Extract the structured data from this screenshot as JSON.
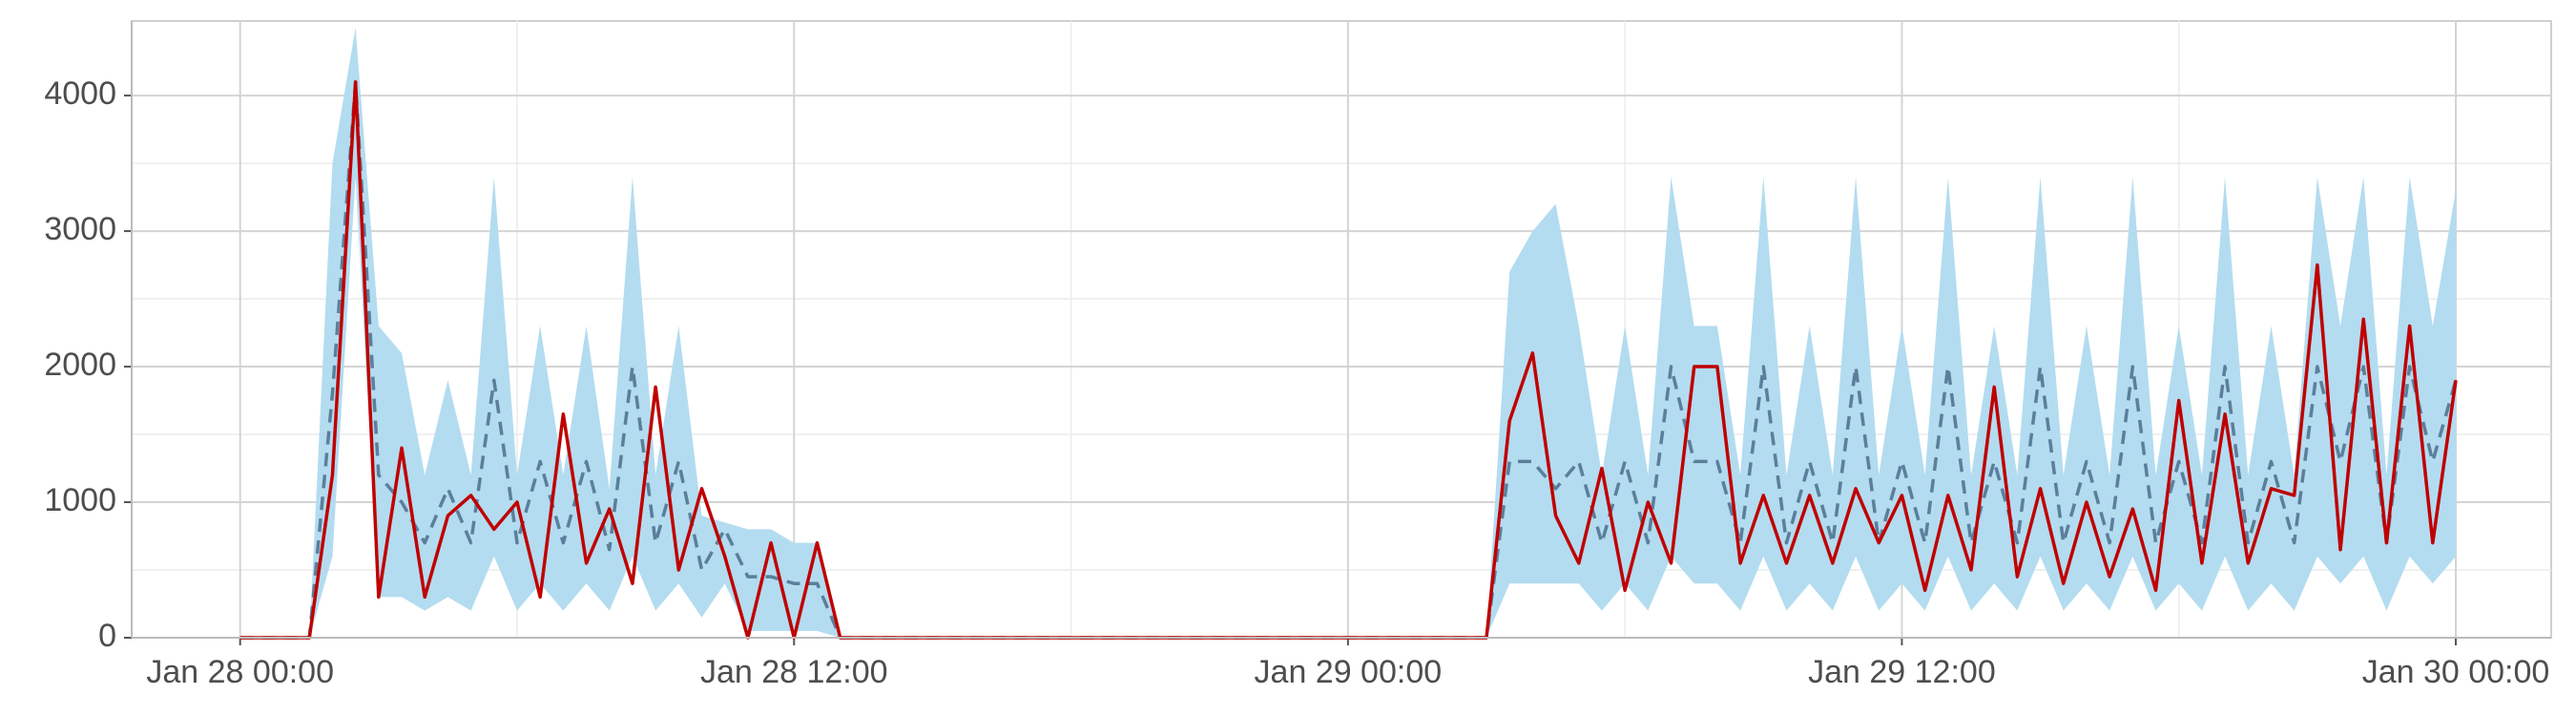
{
  "chart_data": {
    "type": "line",
    "x": [
      "Jan 28 00:00",
      "Jan 28 00:30",
      "Jan 28 01:00",
      "Jan 28 01:30",
      "Jan 28 02:00",
      "Jan 28 02:30",
      "Jan 28 03:00",
      "Jan 28 03:30",
      "Jan 28 04:00",
      "Jan 28 04:30",
      "Jan 28 05:00",
      "Jan 28 05:30",
      "Jan 28 06:00",
      "Jan 28 06:30",
      "Jan 28 07:00",
      "Jan 28 07:30",
      "Jan 28 08:00",
      "Jan 28 08:30",
      "Jan 28 09:00",
      "Jan 28 09:30",
      "Jan 28 10:00",
      "Jan 28 10:30",
      "Jan 28 11:00",
      "Jan 28 11:30",
      "Jan 28 12:00",
      "Jan 28 12:30",
      "Jan 28 13:00",
      "Jan 28 13:30",
      "Jan 28 14:00",
      "Jan 28 14:30",
      "Jan 28 15:00",
      "Jan 28 15:30",
      "Jan 28 16:00",
      "Jan 28 16:30",
      "Jan 28 17:00",
      "Jan 28 17:30",
      "Jan 28 18:00",
      "Jan 28 18:30",
      "Jan 28 19:00",
      "Jan 28 19:30",
      "Jan 28 20:00",
      "Jan 28 20:30",
      "Jan 28 21:00",
      "Jan 28 21:30",
      "Jan 28 22:00",
      "Jan 28 22:30",
      "Jan 28 23:00",
      "Jan 28 23:30",
      "Jan 29 00:00",
      "Jan 29 00:30",
      "Jan 29 01:00",
      "Jan 29 01:30",
      "Jan 29 02:00",
      "Jan 29 02:30",
      "Jan 29 03:00",
      "Jan 29 03:30",
      "Jan 29 04:00",
      "Jan 29 04:30",
      "Jan 29 05:00",
      "Jan 29 05:30",
      "Jan 29 06:00",
      "Jan 29 06:30",
      "Jan 29 07:00",
      "Jan 29 07:30",
      "Jan 29 08:00",
      "Jan 29 08:30",
      "Jan 29 09:00",
      "Jan 29 09:30",
      "Jan 29 10:00",
      "Jan 29 10:30",
      "Jan 29 11:00",
      "Jan 29 11:30",
      "Jan 29 12:00",
      "Jan 29 12:30",
      "Jan 29 13:00",
      "Jan 29 13:30",
      "Jan 29 14:00",
      "Jan 29 14:30",
      "Jan 29 15:00",
      "Jan 29 15:30",
      "Jan 29 16:00",
      "Jan 29 16:30",
      "Jan 29 17:00",
      "Jan 29 17:30",
      "Jan 29 18:00",
      "Jan 29 18:30",
      "Jan 29 19:00",
      "Jan 29 19:30",
      "Jan 29 20:00",
      "Jan 29 20:30",
      "Jan 29 21:00",
      "Jan 29 21:30",
      "Jan 29 22:00",
      "Jan 29 22:30",
      "Jan 29 23:00",
      "Jan 29 23:30",
      "Jan 30 00:00"
    ],
    "band": {
      "color": "#b3dcf0",
      "upper": [
        0,
        0,
        0,
        0,
        3500,
        4500,
        2300,
        2100,
        1200,
        1900,
        1200,
        3400,
        1200,
        2300,
        1200,
        2300,
        1100,
        3400,
        1200,
        2300,
        900,
        850,
        800,
        800,
        700,
        700,
        0,
        0,
        0,
        0,
        0,
        0,
        0,
        0,
        0,
        0,
        0,
        0,
        0,
        0,
        0,
        0,
        0,
        0,
        0,
        0,
        0,
        0,
        0,
        0,
        0,
        0,
        0,
        0,
        0,
        2700,
        3000,
        3200,
        2300,
        1200,
        2300,
        1200,
        3400,
        2300,
        2300,
        1200,
        3400,
        1200,
        2300,
        1200,
        3400,
        1200,
        2300,
        1200,
        3400,
        1200,
        2300,
        1200,
        3400,
        1200,
        2300,
        1200,
        3400,
        1200,
        2300,
        1200,
        3400,
        1200,
        2300,
        1200,
        3400,
        2300,
        3400,
        1200,
        3400,
        2300,
        3300
      ],
      "lower": [
        0,
        0,
        0,
        0,
        600,
        3400,
        300,
        300,
        200,
        300,
        200,
        600,
        200,
        400,
        200,
        400,
        200,
        600,
        200,
        400,
        150,
        400,
        50,
        50,
        50,
        50,
        0,
        0,
        0,
        0,
        0,
        0,
        0,
        0,
        0,
        0,
        0,
        0,
        0,
        0,
        0,
        0,
        0,
        0,
        0,
        0,
        0,
        0,
        0,
        0,
        0,
        0,
        0,
        0,
        0,
        400,
        400,
        400,
        400,
        200,
        400,
        200,
        600,
        400,
        400,
        200,
        600,
        200,
        400,
        200,
        600,
        200,
        400,
        200,
        600,
        200,
        400,
        200,
        600,
        200,
        400,
        200,
        600,
        200,
        400,
        200,
        600,
        200,
        400,
        200,
        600,
        400,
        600,
        200,
        600,
        400,
        600
      ]
    },
    "series": [
      {
        "color": "#5b7f9b",
        "dashed": true,
        "values": [
          0,
          0,
          0,
          0,
          1800,
          4100,
          1200,
          1000,
          700,
          1100,
          700,
          1900,
          700,
          1300,
          700,
          1300,
          650,
          2000,
          700,
          1300,
          500,
          800,
          450,
          450,
          400,
          400,
          0,
          0,
          0,
          0,
          0,
          0,
          0,
          0,
          0,
          0,
          0,
          0,
          0,
          0,
          0,
          0,
          0,
          0,
          0,
          0,
          0,
          0,
          0,
          0,
          0,
          0,
          0,
          0,
          0,
          1300,
          1300,
          1100,
          1300,
          700,
          1300,
          700,
          2000,
          1300,
          1300,
          700,
          2000,
          700,
          1300,
          700,
          2000,
          700,
          1300,
          700,
          2000,
          700,
          1300,
          700,
          2000,
          700,
          1300,
          700,
          2000,
          700,
          1300,
          700,
          2000,
          700,
          1300,
          700,
          2000,
          1300,
          2000,
          700,
          2000,
          1300,
          1900
        ]
      },
      {
        "color": "#c00000",
        "dashed": false,
        "values": [
          0,
          0,
          0,
          0,
          1200,
          4100,
          300,
          1400,
          300,
          900,
          1050,
          800,
          1000,
          300,
          1650,
          550,
          950,
          400,
          1850,
          500,
          1100,
          600,
          0,
          700,
          0,
          700,
          0,
          0,
          0,
          0,
          0,
          0,
          0,
          0,
          0,
          0,
          0,
          0,
          0,
          0,
          0,
          0,
          0,
          0,
          0,
          0,
          0,
          0,
          0,
          0,
          0,
          0,
          0,
          0,
          0,
          1600,
          2100,
          900,
          550,
          1250,
          350,
          1000,
          550,
          2000,
          2000,
          550,
          1050,
          550,
          1050,
          550,
          1100,
          700,
          1050,
          350,
          1050,
          500,
          1850,
          450,
          1100,
          400,
          1000,
          450,
          950,
          350,
          1750,
          550,
          1650,
          550,
          1100,
          1050,
          2750,
          650,
          2350,
          700,
          2300,
          700,
          1900
        ]
      }
    ],
    "xlim": [
      "Jan 27 21:39",
      "Jan 30 02:04"
    ],
    "xticks": [
      "Jan 28 00:00",
      "Jan 28 12:00",
      "Jan 29 00:00",
      "Jan 29 12:00",
      "Jan 30 00:00"
    ],
    "ylim": [
      0,
      4550
    ],
    "yticks": [
      0,
      1000,
      2000,
      3000,
      4000
    ],
    "grid": true
  }
}
